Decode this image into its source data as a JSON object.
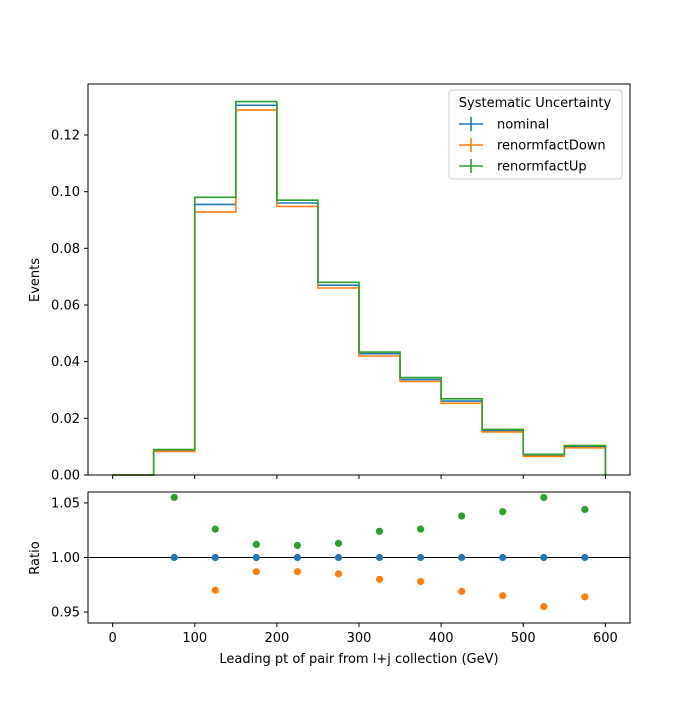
{
  "chart_data": [
    {
      "type": "histogram-step",
      "xlabel": "",
      "ylabel": "Events",
      "xlim": [
        -30,
        630
      ],
      "ylim": [
        0,
        0.138
      ],
      "yticks": [
        0.0,
        0.02,
        0.04,
        0.06,
        0.08,
        0.1,
        0.12
      ],
      "ytick_labels": [
        "0.00",
        "0.02",
        "0.04",
        "0.06",
        "0.08",
        "0.10",
        "0.12"
      ],
      "bin_edges": [
        0,
        50,
        100,
        150,
        200,
        250,
        300,
        350,
        400,
        450,
        500,
        550,
        600
      ],
      "legend": {
        "title": "Systematic Uncertainty",
        "placement": "upper right"
      },
      "series": [
        {
          "name": "nominal",
          "color": "#1f77b4",
          "values": [
            0.0,
            0.0085,
            0.0955,
            0.1305,
            0.096,
            0.067,
            0.0428,
            0.0337,
            0.0261,
            0.0157,
            0.007,
            0.01
          ]
        },
        {
          "name": "renormfactDown",
          "color": "#ff7f0e",
          "values": [
            0.0,
            0.0083,
            0.0928,
            0.1288,
            0.0948,
            0.066,
            0.042,
            0.033,
            0.0253,
            0.0152,
            0.0066,
            0.0096
          ]
        },
        {
          "name": "renormfactUp",
          "color": "#2ca02c",
          "values": [
            0.0,
            0.009,
            0.098,
            0.1318,
            0.097,
            0.068,
            0.0434,
            0.0344,
            0.0269,
            0.0161,
            0.0073,
            0.0104
          ]
        }
      ]
    },
    {
      "type": "scatter",
      "xlabel": "Leading pt of pair from l+j collection (GeV)",
      "ylabel": "Ratio",
      "xlim": [
        -30,
        630
      ],
      "ylim": [
        0.94,
        1.06
      ],
      "xticks": [
        0,
        100,
        200,
        300,
        400,
        500,
        600
      ],
      "xtick_labels": [
        "0",
        "100",
        "200",
        "300",
        "400",
        "500",
        "600"
      ],
      "yticks": [
        0.95,
        1.0,
        1.05
      ],
      "ytick_labels": [
        "0.95",
        "1.00",
        "1.05"
      ],
      "reference_line": 1.0,
      "x": [
        75,
        125,
        175,
        225,
        275,
        325,
        375,
        425,
        475,
        525,
        575
      ],
      "series": [
        {
          "name": "nominal",
          "color": "#1f77b4",
          "values": [
            1.0,
            1.0,
            1.0,
            1.0,
            1.0,
            1.0,
            1.0,
            1.0,
            1.0,
            1.0,
            1.0
          ]
        },
        {
          "name": "renormfactDown",
          "color": "#ff7f0e",
          "values": [
            null,
            0.97,
            0.987,
            0.987,
            0.985,
            0.98,
            0.978,
            0.969,
            0.965,
            0.955,
            0.964
          ]
        },
        {
          "name": "renormfactUp",
          "color": "#2ca02c",
          "values": [
            1.055,
            1.026,
            1.012,
            1.011,
            1.013,
            1.024,
            1.026,
            1.038,
            1.042,
            1.055,
            1.044
          ]
        }
      ]
    }
  ]
}
